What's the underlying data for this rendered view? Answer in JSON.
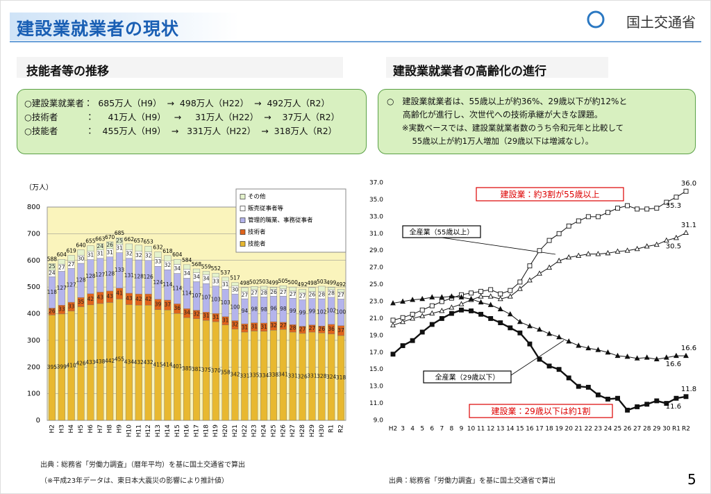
{
  "header": {
    "title": "建設業就業者の現状",
    "logo": "国土交通省"
  },
  "panels": [
    {
      "title": "技能者等の推移",
      "lines": [
        "○建設業就業者：  685万人（H9）  →  498万人（H22）  →  492万人（R2）",
        "○技術者          ：     41万人（H9）   →     31万人（H22）  →    37万人（R2）",
        "○技能者          ：   455万人（H9）  →   331万人（H22）  →  318万人（R2）"
      ]
    },
    {
      "title": "建設業就業者の高齢化の進行",
      "lines": [
        "○　建設業就業者は、55歳以上が約36%、29歳以下が約12%と",
        "      高齢化が進行し、次世代への技術承継が大きな課題。",
        "      ※実数ベースでは、建設業就業者数のうち令和元年と比較して",
        "          55歳以上が約1万人増加（29歳以下は増減なし）。"
      ]
    }
  ],
  "chart_data": [
    {
      "type": "stacked-bar",
      "y_unit": "（万人）",
      "categories": [
        "H2",
        "H3",
        "H4",
        "H5",
        "H6",
        "H7",
        "H8",
        "H9",
        "H10",
        "H11",
        "H12",
        "H13",
        "H14",
        "H15",
        "H16",
        "H17",
        "H18",
        "H19",
        "H20",
        "H21",
        "H22",
        "H23",
        "H24",
        "H25",
        "H26",
        "H27",
        "H28",
        "H29",
        "H30",
        "R1",
        "R2"
      ],
      "series": [
        {
          "name": "技能者",
          "color": "#e8b830",
          "values": [
            395,
            399,
            410,
            426,
            433,
            438,
            442,
            455,
            434,
            432,
            432,
            415,
            414,
            401,
            385,
            381,
            375,
            370,
            358,
            342,
            331,
            335,
            334,
            338,
            341,
            331,
            326,
            331,
            328,
            324,
            318
          ]
        },
        {
          "name": "技術者",
          "color": "#e0641c",
          "values": [
            26,
            33,
            33,
            35,
            42,
            43,
            43,
            41,
            43,
            42,
            42,
            39,
            37,
            36,
            34,
            32,
            31,
            31,
            31,
            32,
            31,
            31,
            31,
            32,
            27,
            28,
            27,
            27,
            26,
            36,
            37
          ]
        },
        {
          "name": "管理的職業、事務従事者",
          "color": "#b4b4ec",
          "values": [
            118,
            127,
            127,
            128,
            128,
            127,
            128,
            133,
            131,
            128,
            126,
            124,
            114,
            114,
            114,
            107,
            107,
            103,
            103,
            100,
            94,
            98,
            98,
            96,
            98,
            99,
            99,
            99,
            102,
            102,
            100
          ]
        },
        {
          "name": "販売従事者等",
          "color": "#ffffff",
          "values": [
            24,
            27,
            27,
            30,
            31,
            31,
            31,
            31,
            32,
            32,
            32,
            33,
            32,
            34,
            34,
            34,
            34,
            33,
            31,
            30,
            27,
            27,
            28,
            26,
            27,
            27,
            27,
            26,
            28,
            28,
            27
          ]
        },
        {
          "name": "その他",
          "color": "#e4f2cc",
          "values": [
            25,
            18,
            22,
            21,
            21,
            24,
            26,
            25,
            22,
            23,
            21,
            21,
            21,
            19,
            17,
            14,
            12,
            15,
            14,
            13,
            15,
            11,
            12,
            7,
            12,
            15,
            13,
            15,
            19,
            9,
            10
          ]
        }
      ],
      "totals": [
        588,
        604,
        619,
        640,
        655,
        663,
        670,
        685,
        662,
        657,
        653,
        632,
        618,
        604,
        584,
        568,
        559,
        552,
        537,
        517,
        498,
        502,
        503,
        499,
        505,
        500,
        492,
        498,
        503,
        499,
        492
      ],
      "ylim": [
        0,
        800
      ],
      "yticks": [
        0,
        100,
        200,
        300,
        400,
        500,
        600,
        700,
        800
      ],
      "grid": true,
      "legend": "top-right",
      "source": "出典：総務省「労働力調査」（暦年平均）を基に国土交通省で算出",
      "note": "（※平成23年データは、東日本大震災の影響により推計値）"
    },
    {
      "type": "line",
      "categories": [
        "H2",
        "3",
        "4",
        "5",
        "6",
        "7",
        "8",
        "9",
        "10",
        "11",
        "12",
        "13",
        "14",
        "15",
        "16",
        "17",
        "18",
        "19",
        "20",
        "21",
        "22",
        "23",
        "24",
        "25",
        "26",
        "27",
        "28",
        "29",
        "30",
        "R1",
        "R2"
      ],
      "series": [
        {
          "color": "#111111",
          "marker": "square-open",
          "values": [
            20.8,
            21.1,
            21.5,
            22.0,
            22.5,
            23.0,
            23.4,
            23.8,
            24.0,
            24.2,
            24.4,
            23.9,
            24.3,
            25.3,
            27.2,
            29.0,
            30.2,
            31.0,
            31.9,
            32.5,
            33.0,
            33.0,
            33.5,
            34.0,
            34.3,
            33.9,
            33.9,
            34.0,
            34.7,
            35.3,
            36.0
          ],
          "value_labels": [
            null,
            null,
            null,
            null,
            null,
            null,
            null,
            null,
            null,
            null,
            null,
            null,
            null,
            null,
            null,
            null,
            null,
            null,
            null,
            null,
            null,
            null,
            null,
            null,
            null,
            null,
            null,
            null,
            null,
            "35.3",
            "36.0"
          ]
        },
        {
          "color": "#111111",
          "marker": "triangle-open",
          "values": [
            20.2,
            20.6,
            21.0,
            21.3,
            21.6,
            21.9,
            22.3,
            22.7,
            23.2,
            23.6,
            23.6,
            23.3,
            23.6,
            24.5,
            25.5,
            26.3,
            27.0,
            27.8,
            28.2,
            28.4,
            28.6,
            28.6,
            28.7,
            28.9,
            29.0,
            29.2,
            29.5,
            29.7,
            30.2,
            30.5,
            31.1
          ],
          "value_labels": [
            null,
            null,
            null,
            null,
            null,
            null,
            null,
            null,
            null,
            null,
            null,
            null,
            null,
            null,
            null,
            null,
            null,
            null,
            null,
            null,
            null,
            null,
            null,
            null,
            null,
            null,
            null,
            null,
            null,
            "30.5",
            "31.1"
          ]
        },
        {
          "color": "#111111",
          "marker": "triangle",
          "values": [
            22.8,
            23.0,
            23.2,
            23.3,
            23.5,
            23.5,
            23.6,
            23.5,
            23.3,
            22.9,
            22.6,
            22.1,
            21.5,
            20.6,
            20.1,
            19.7,
            19.2,
            18.8,
            18.3,
            17.8,
            17.5,
            17.3,
            17.0,
            16.6,
            16.5,
            16.3,
            16.4,
            16.2,
            16.4,
            16.6,
            16.6
          ],
          "value_labels": [
            null,
            null,
            null,
            null,
            null,
            null,
            null,
            null,
            null,
            null,
            null,
            null,
            null,
            null,
            null,
            null,
            null,
            null,
            null,
            null,
            null,
            null,
            null,
            null,
            null,
            null,
            null,
            null,
            null,
            "16.6",
            "16.6"
          ]
        },
        {
          "color": "#111111",
          "marker": "square",
          "values": [
            16.8,
            17.8,
            18.4,
            19.4,
            20.3,
            21.0,
            21.6,
            22.0,
            21.9,
            21.5,
            21.0,
            20.5,
            19.9,
            19.3,
            18.0,
            16.2,
            15.4,
            15.0,
            14.0,
            13.0,
            12.9,
            12.0,
            11.5,
            11.6,
            10.2,
            10.6,
            10.9,
            11.3,
            11.0,
            11.6,
            11.8
          ],
          "value_labels": [
            null,
            null,
            null,
            null,
            null,
            null,
            null,
            null,
            null,
            null,
            null,
            null,
            null,
            null,
            null,
            null,
            null,
            null,
            null,
            null,
            null,
            null,
            null,
            null,
            null,
            null,
            null,
            null,
            null,
            "11.6",
            "11.8"
          ]
        }
      ],
      "ylim": [
        9.0,
        37.0
      ],
      "yticks": [
        {
          "value": 9,
          "label": "9.0"
        },
        {
          "value": 11,
          "label": "11.0"
        },
        {
          "value": 13,
          "label": "13.0"
        },
        {
          "value": 15,
          "label": "15.0"
        },
        {
          "value": 17,
          "label": "17.0"
        },
        {
          "value": 19,
          "label": "19.0"
        },
        {
          "value": 21,
          "label": "21.0"
        },
        {
          "value": 23,
          "label": "23.0"
        },
        {
          "value": 25,
          "label": "25.0"
        },
        {
          "value": 27,
          "label": "27.0"
        },
        {
          "value": 29,
          "label": "29.0"
        },
        {
          "value": 31,
          "label": "31.0"
        },
        {
          "value": 33,
          "label": "33.0"
        },
        {
          "value": 35,
          "label": "35.0"
        },
        {
          "value": 37,
          "label": "37.0"
        }
      ],
      "grid": false,
      "annotations": [
        "建設業：約3割が55歳以上",
        "全産業（55歳以上）",
        "全産業（29歳以下）",
        "建設業：29歳以下は約1割"
      ],
      "source": "出典：総務省「労働力調査」を基に国土交通省で算出"
    }
  ],
  "footer": {
    "page": "5"
  }
}
